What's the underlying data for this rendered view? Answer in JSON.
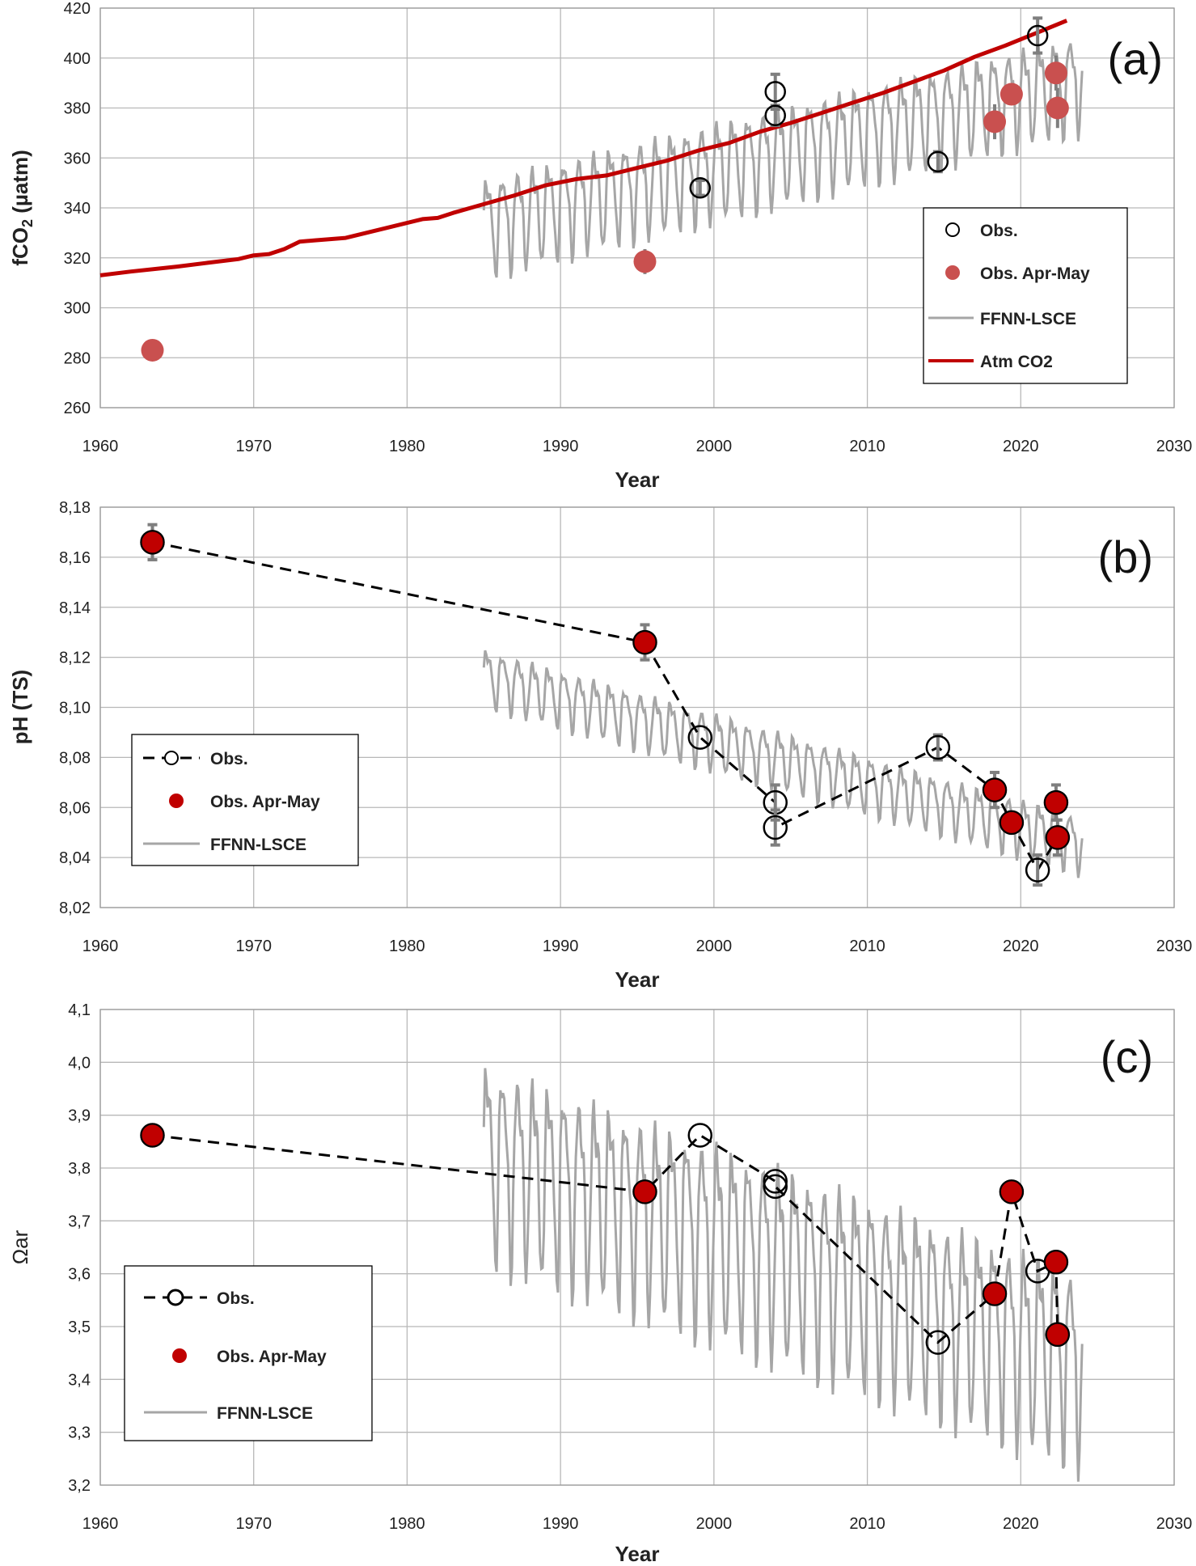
{
  "colors": {
    "atm_co2": "#c00000",
    "obs_apr_may_a": "#c9504f",
    "obs_apr_may": "#c00000",
    "ffnn": "#a6a6a6",
    "obs_marker_edge": "#000000",
    "error_bar": "#7f7f7f",
    "grid": "#b8b8b8"
  },
  "chart_data": [
    {
      "type": "line",
      "panel_label": "(a)",
      "xlabel": "Year",
      "ylabel_main": "fCO",
      "ylabel_sub": "2",
      "ylabel_rest": " (µatm)",
      "xlim": [
        1960,
        2030
      ],
      "ylim": [
        260,
        420
      ],
      "xticks": [
        "1960",
        "1970",
        "1980",
        "1990",
        "2000",
        "2010",
        "2020",
        "2030"
      ],
      "yticks": [
        "260",
        "280",
        "300",
        "320",
        "340",
        "360",
        "380",
        "400",
        "420"
      ],
      "grid": true,
      "legend_placement": "right",
      "legend": [
        "Obs.",
        "Obs. Apr-May",
        "FFNN-LSCE",
        "Atm CO2"
      ],
      "series": [
        {
          "name": "Atm CO2",
          "style": "line",
          "x": [
            1960,
            1962,
            1965,
            1967,
            1969,
            1970,
            1971,
            1972,
            1973,
            1974,
            1976,
            1977,
            1979,
            1981,
            1982,
            1983,
            1985,
            1987,
            1989,
            1991,
            1993,
            1995,
            1997,
            1999,
            2001,
            2003,
            2005,
            2007,
            2009,
            2011,
            2013,
            2015,
            2017,
            2019,
            2021,
            2023
          ],
          "y": [
            313,
            314.5,
            316.5,
            318,
            319.5,
            321,
            321.5,
            323.5,
            326.5,
            327,
            328,
            329.5,
            332.5,
            335.5,
            336,
            338,
            341.5,
            345,
            349,
            351.5,
            353,
            356,
            359,
            363,
            366,
            370.5,
            374,
            378,
            382,
            386,
            390.5,
            395,
            400.5,
            405,
            410,
            415
          ]
        },
        {
          "name": "Obs.",
          "style": "open-circle",
          "x": [
            1999.1,
            2004,
            2004,
            2014.6,
            2021.1
          ],
          "y": [
            348,
            386.5,
            377,
            358.5,
            409
          ],
          "err": [
            3,
            7,
            4,
            4,
            7
          ]
        },
        {
          "name": "Obs. Apr-May",
          "style": "filled-circle",
          "x": [
            1963.4,
            1995.5,
            2018.3,
            2019.4,
            2022.3,
            2022.4
          ],
          "y": [
            283,
            318.5,
            374.5,
            385.5,
            394,
            380
          ],
          "err": [
            0,
            5,
            7,
            4,
            7,
            8
          ]
        },
        {
          "name": "FFNN-LSCE",
          "style": "seasonal-line",
          "x_start": 1985,
          "x_end": 2024,
          "center_start": 334,
          "center_end": 392,
          "amplitude": 18
        }
      ]
    },
    {
      "type": "line",
      "panel_label": "(b)",
      "xlabel": "Year",
      "ylabel_main": "pH (TS)",
      "xlim": [
        1960,
        2030
      ],
      "ylim": [
        8.02,
        8.18
      ],
      "xticks": [
        "1960",
        "1970",
        "1980",
        "1990",
        "2000",
        "2010",
        "2020",
        "2030"
      ],
      "yticks": [
        "8,02",
        "8,04",
        "8,06",
        "8,08",
        "8,10",
        "8,12",
        "8,14",
        "8,16",
        "8,18"
      ],
      "grid": true,
      "legend_placement": "left",
      "legend": [
        "Obs.",
        "Obs. Apr-May",
        "FFNN-LSCE"
      ],
      "series": [
        {
          "name": "Obs.",
          "style": "open-circle-dashed",
          "x": [
            1963.4,
            1995.5,
            1999.1,
            2004,
            2004,
            2014.6,
            2018.3,
            2019.4,
            2021.1,
            2022.4,
            2022.3
          ],
          "y": [
            8.166,
            8.126,
            8.088,
            8.062,
            8.052,
            8.084,
            8.067,
            8.054,
            8.035,
            8.048,
            8.062
          ],
          "err": [
            0.007,
            0.007,
            0,
            0.007,
            0.007,
            0.005,
            0.007,
            0,
            0.006,
            0.007,
            0.007
          ]
        },
        {
          "name": "Obs. Apr-May",
          "style": "filled-circle",
          "x": [
            1963.4,
            1995.5,
            2018.3,
            2019.4,
            2022.4,
            2022.3
          ],
          "y": [
            8.166,
            8.126,
            8.067,
            8.054,
            8.048,
            8.062
          ]
        },
        {
          "name": "FFNN-LSCE",
          "style": "seasonal-line",
          "x_start": 1985,
          "x_end": 2024,
          "center_start": 8.113,
          "center_end": 8.046,
          "amplitude": 0.0105
        }
      ]
    },
    {
      "type": "line",
      "panel_label": "(c)",
      "xlabel": "Year",
      "ylabel_main": "Ωar",
      "xlim": [
        1960,
        2030
      ],
      "ylim": [
        3.2,
        4.1
      ],
      "xticks": [
        "1960",
        "1970",
        "1980",
        "1990",
        "2000",
        "2010",
        "2020",
        "2030"
      ],
      "yticks": [
        "3,2",
        "3,3",
        "3,4",
        "3,5",
        "3,6",
        "3,7",
        "3,8",
        "3,9",
        "4,0",
        "4,1"
      ],
      "grid": true,
      "legend_placement": "left",
      "legend": [
        "Obs.",
        "Obs. Apr-May",
        "FFNN-LSCE"
      ],
      "series": [
        {
          "name": "Obs.",
          "style": "open-circle-dashed",
          "x": [
            1963.4,
            1995.5,
            1999.1,
            2004,
            2004,
            2014.6,
            2018.3,
            2019.4,
            2021.1,
            2022.3,
            2022.4
          ],
          "y": [
            3.862,
            3.755,
            3.862,
            3.775,
            3.765,
            3.47,
            3.562,
            3.755,
            3.605,
            3.622,
            3.485
          ]
        },
        {
          "name": "Obs. Apr-May",
          "style": "filled-circle",
          "x": [
            1963.4,
            1995.5,
            2018.3,
            2019.4,
            2022.3,
            2022.4
          ],
          "y": [
            3.862,
            3.755,
            3.562,
            3.755,
            3.622,
            3.485
          ]
        },
        {
          "name": "FFNN-LSCE",
          "style": "seasonal-line",
          "x_start": 1985,
          "x_end": 2024,
          "center_start": 3.83,
          "center_end": 3.44,
          "amplitude": 0.17
        }
      ]
    }
  ]
}
